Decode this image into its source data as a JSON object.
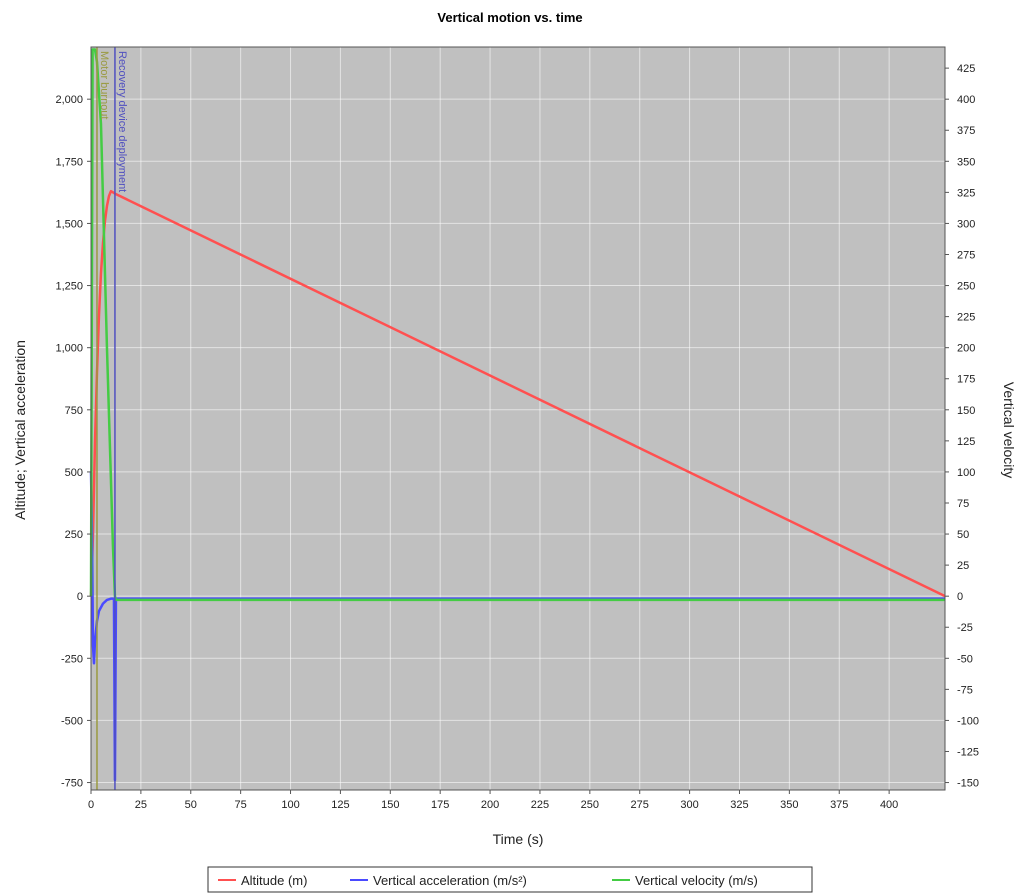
{
  "chart_data": {
    "type": "line",
    "title": "Vertical motion vs. time",
    "xlabel": "Time (s)",
    "ylabel_left": "Altitude; Vertical acceleration",
    "ylabel_right": "Vertical velocity",
    "xlim": [
      0,
      428
    ],
    "ylim_left": [
      -780,
      2210
    ],
    "ylim_right": [
      -156,
      442
    ],
    "x_ticks": [
      0,
      25,
      50,
      75,
      100,
      125,
      150,
      175,
      200,
      225,
      250,
      275,
      300,
      325,
      350,
      375,
      400
    ],
    "x_tick_labels": [
      "0",
      "25",
      "50",
      "75",
      "100",
      "125",
      "150",
      "175",
      "200",
      "225",
      "250",
      "275",
      "300",
      "325",
      "350",
      "375",
      "400"
    ],
    "y_left_ticks": [
      -750,
      -500,
      -250,
      0,
      250,
      500,
      750,
      1000,
      1250,
      1500,
      1750,
      2000
    ],
    "y_left_tick_labels": [
      "-750",
      "-500",
      "-250",
      "0",
      "250",
      "500",
      "750",
      "1,000",
      "1,250",
      "1,500",
      "1,750",
      "2,000"
    ],
    "y_right_ticks": [
      -150,
      -125,
      -100,
      -75,
      -50,
      -25,
      0,
      25,
      50,
      75,
      100,
      125,
      150,
      175,
      200,
      225,
      250,
      275,
      300,
      325,
      350,
      375,
      400,
      425
    ],
    "y_right_tick_labels": [
      "-150",
      "-125",
      "-100",
      "-75",
      "-50",
      "-25",
      "0",
      "25",
      "50",
      "75",
      "100",
      "125",
      "150",
      "175",
      "200",
      "225",
      "250",
      "275",
      "300",
      "325",
      "350",
      "375",
      "400",
      "425"
    ],
    "grid": true,
    "legend_placement": "bottom-center",
    "background": "#c0c0c0",
    "series": [
      {
        "name": "Altitude (m)",
        "axis": "left",
        "color": "#ff5050",
        "x": [
          0,
          1,
          2,
          3,
          4,
          5,
          6,
          7,
          8,
          9,
          10,
          11,
          12,
          428
        ],
        "y": [
          0,
          250,
          620,
          900,
          1130,
          1300,
          1420,
          1510,
          1570,
          1610,
          1630,
          1625,
          1620,
          0
        ]
      },
      {
        "name": "Vertical acceleration (m/s²)",
        "axis": "left",
        "color": "#4a4aff",
        "x": [
          0,
          0.5,
          1,
          1.5,
          2,
          3,
          4,
          6,
          8,
          10,
          11.5,
          12,
          12.5,
          428
        ],
        "y": [
          500,
          250,
          -200,
          -270,
          -180,
          -100,
          -60,
          -30,
          -15,
          -10,
          -10,
          -740,
          -10,
          -10
        ],
        "hidden_note": false
      },
      {
        "name": "Vertical velocity (m/s)",
        "axis": "right",
        "color": "#44cc44",
        "x": [
          0,
          0.8,
          1.5,
          2,
          3,
          5,
          8,
          11,
          12,
          12.5,
          428
        ],
        "y": [
          0,
          440,
          440,
          440,
          430,
          380,
          200,
          40,
          0,
          -3,
          -3
        ]
      }
    ],
    "events": [
      {
        "x": 3,
        "label": "Motor burnout",
        "color": "#9a9a40"
      },
      {
        "x": 12,
        "label": "Recovery device deployment",
        "color": "#5050c0"
      }
    ]
  },
  "legend": {
    "items": [
      {
        "label": "Altitude (m)",
        "color": "#ff5050"
      },
      {
        "label": "Vertical acceleration (m/s²)",
        "color": "#4a4aff"
      },
      {
        "label": "Vertical velocity (m/s)",
        "color": "#44cc44"
      }
    ]
  }
}
